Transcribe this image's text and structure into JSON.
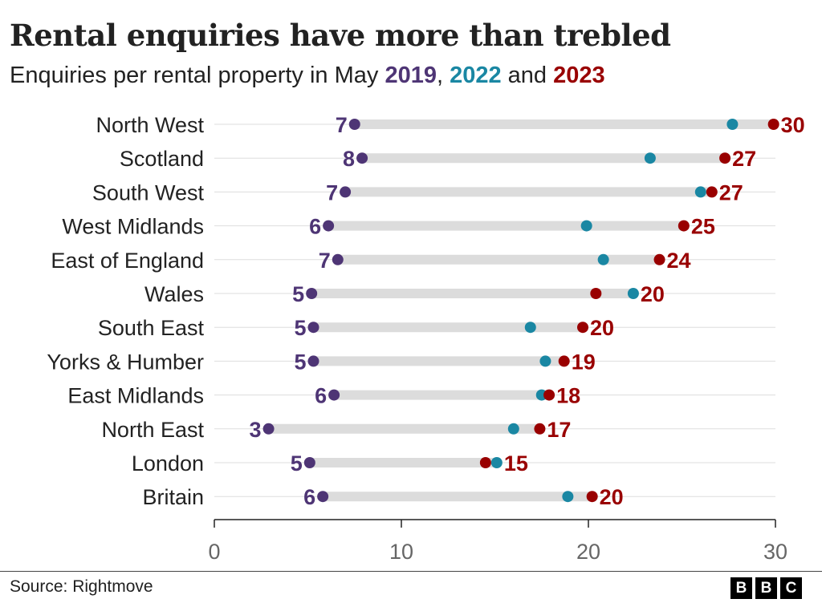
{
  "title": "Rental enquiries have more than trebled",
  "subtitle": {
    "prefix": "Enquiries per rental property in May ",
    "y1": "2019",
    "sep1": ", ",
    "y2": "2022",
    "sep2": " and ",
    "y3": "2023"
  },
  "source": "Source: Rightmove",
  "logo": [
    "B",
    "B",
    "C"
  ],
  "colors": {
    "2019": "#4e3575",
    "2022": "#1a87a3",
    "2023": "#990000",
    "bar": "#dcdcdc",
    "grid": "#dddddd",
    "axis": "#222222",
    "tick_label": "#666666"
  },
  "chart_data": {
    "type": "dot",
    "title": "Rental enquiries have more than trebled",
    "xlim": [
      0,
      30
    ],
    "xticks": [
      "0",
      "10",
      "20",
      "30"
    ],
    "grid": true,
    "series_names": [
      "2019",
      "2022",
      "2023"
    ],
    "categories": [
      "North West",
      "Scotland",
      "South West",
      "West Midlands",
      "East of England",
      "Wales",
      "South East",
      "Yorks & Humber",
      "East Midlands",
      "North East",
      "London",
      "Britain"
    ],
    "values_2019": [
      7.5,
      7.9,
      7.0,
      6.1,
      6.6,
      5.2,
      5.3,
      5.3,
      6.4,
      2.9,
      5.1,
      5.8
    ],
    "values_2022": [
      27.7,
      23.3,
      26.0,
      19.9,
      20.8,
      22.4,
      16.9,
      17.7,
      17.5,
      16.0,
      15.1,
      18.9
    ],
    "values_2023": [
      29.9,
      27.3,
      26.6,
      25.1,
      23.8,
      20.4,
      19.7,
      18.7,
      17.9,
      17.4,
      14.5,
      20.2
    ],
    "labels_2019": [
      "7",
      "8",
      "7",
      "6",
      "7",
      "5",
      "5",
      "5",
      "6",
      "3",
      "5",
      "6"
    ],
    "labels_2023": [
      "30",
      "27",
      "27",
      "25",
      "24",
      "20",
      "20",
      "19",
      "18",
      "17",
      "15",
      "20"
    ]
  }
}
